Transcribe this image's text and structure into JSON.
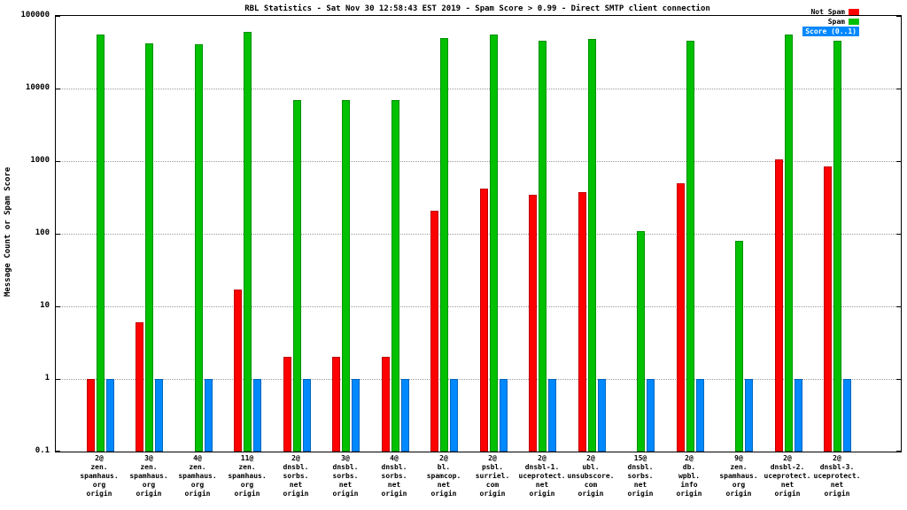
{
  "chart_data": {
    "type": "bar",
    "scale": "log",
    "title": "RBL Statistics - Sat Nov 30 12:58:43 EST 2019 - Spam Score > 0.99 - Direct SMTP client connection",
    "ylabel": "Message Count or Spam Score",
    "xlabel": "",
    "ylim": [
      0.1,
      100000
    ],
    "y_ticks": [
      "0.1",
      "1",
      "10",
      "100",
      "1000",
      "10000",
      "100000"
    ],
    "grid": "horizontal-dotted",
    "legend_position": "top-right",
    "legend": [
      {
        "label": "Not Spam",
        "color": "#ff0000",
        "boxed": false
      },
      {
        "label": "Spam",
        "color": "#00c000",
        "boxed": false
      },
      {
        "label": "Score (0..1)",
        "color": "#0088ff",
        "boxed": true
      }
    ],
    "categories": [
      {
        "lines": [
          "2@",
          "zen.",
          "spamhaus.",
          "org",
          "origin"
        ]
      },
      {
        "lines": [
          "3@",
          "zen.",
          "spamhaus.",
          "org",
          "origin"
        ]
      },
      {
        "lines": [
          "4@",
          "zen.",
          "spamhaus.",
          "org",
          "origin"
        ]
      },
      {
        "lines": [
          "11@",
          "zen.",
          "spamhaus.",
          "org",
          "origin"
        ]
      },
      {
        "lines": [
          "2@",
          "dnsbl.",
          "sorbs.",
          "net",
          "origin"
        ]
      },
      {
        "lines": [
          "3@",
          "dnsbl.",
          "sorbs.",
          "net",
          "origin"
        ]
      },
      {
        "lines": [
          "4@",
          "dnsbl.",
          "sorbs.",
          "net",
          "origin"
        ]
      },
      {
        "lines": [
          "2@",
          "bl.",
          "spamcop.",
          "net",
          "origin"
        ]
      },
      {
        "lines": [
          "2@",
          "psbl.",
          "surriel.",
          "com",
          "origin"
        ]
      },
      {
        "lines": [
          "2@",
          "dnsbl-1.",
          "uceprotect.",
          "net",
          "origin"
        ]
      },
      {
        "lines": [
          "2@",
          "ubl.",
          "unsubscore.",
          "com",
          "origin"
        ]
      },
      {
        "lines": [
          "15@",
          "dnsbl.",
          "sorbs.",
          "net",
          "origin"
        ]
      },
      {
        "lines": [
          "2@",
          "db.",
          "wpbl.",
          "info",
          "origin"
        ]
      },
      {
        "lines": [
          "9@",
          "zen.",
          "spamhaus.",
          "org",
          "origin"
        ]
      },
      {
        "lines": [
          "2@",
          "dnsbl-2.",
          "uceprotect.",
          "net",
          "origin"
        ]
      },
      {
        "lines": [
          "2@",
          "dnsbl-3.",
          "uceprotect.",
          "net",
          "origin"
        ]
      }
    ],
    "series": [
      {
        "name": "Not Spam",
        "color": "#ff0000",
        "values": [
          1,
          6,
          0,
          17,
          2,
          2,
          2,
          210,
          420,
          340,
          370,
          0,
          500,
          0,
          1050,
          850
        ]
      },
      {
        "name": "Spam",
        "color": "#00c000",
        "values": [
          55000,
          42000,
          41000,
          60000,
          7000,
          7000,
          7000,
          50000,
          55000,
          46000,
          48000,
          110,
          46000,
          80,
          55000,
          45000
        ]
      },
      {
        "name": "Score (0..1)",
        "color": "#0088ff",
        "values": [
          1,
          1,
          1,
          1,
          1,
          1,
          1,
          1,
          1,
          1,
          1,
          1,
          1,
          1,
          1,
          1
        ]
      }
    ]
  }
}
